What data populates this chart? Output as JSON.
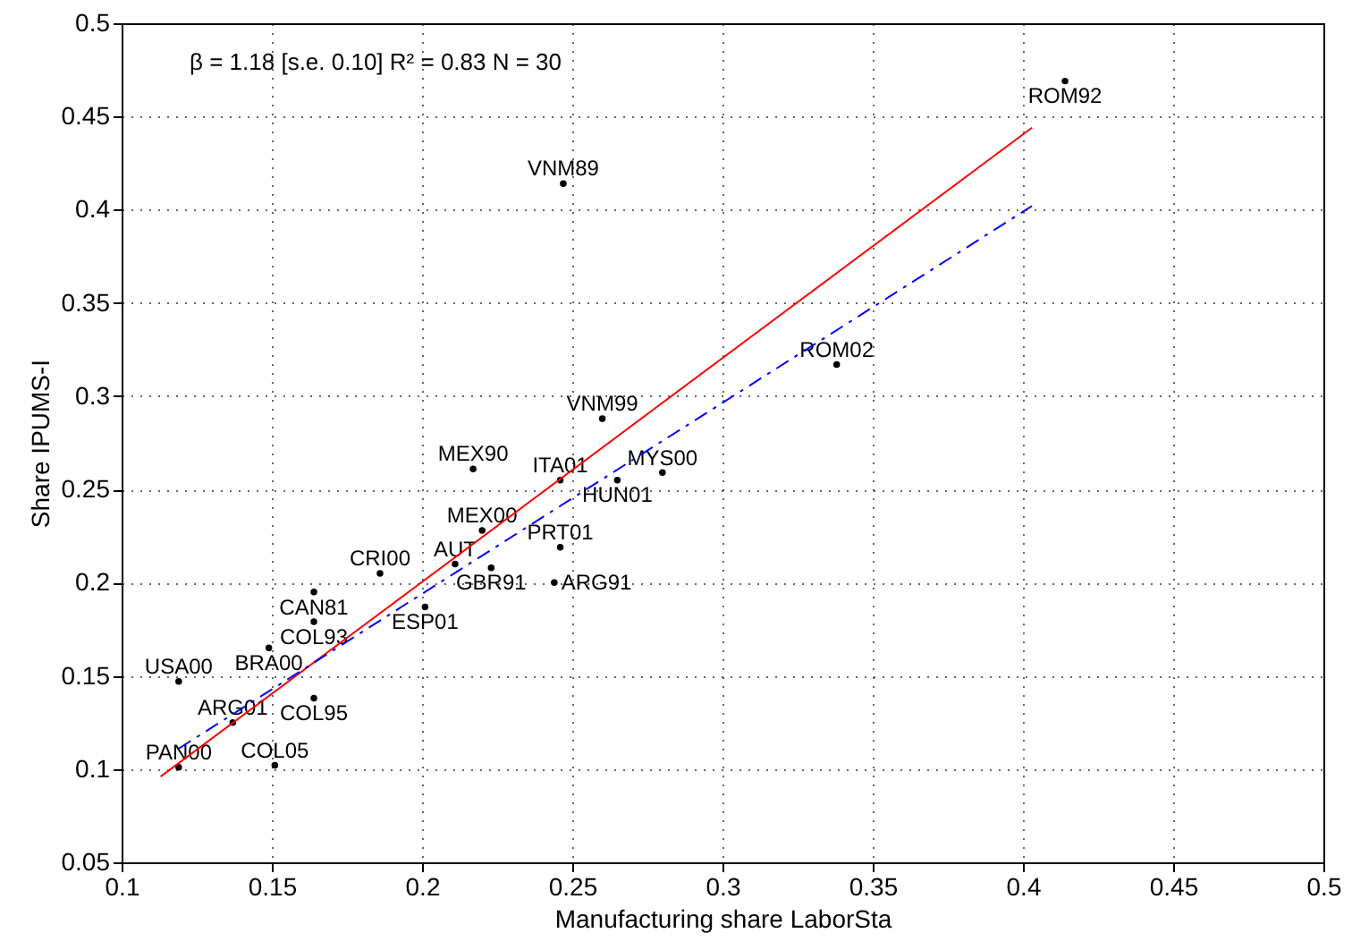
{
  "chart_data": {
    "type": "scatter",
    "xlabel": "Manufacturing share LaborSta",
    "ylabel": "Share IPUMS-I",
    "xlim": [
      0.1,
      0.5
    ],
    "ylim": [
      0.05,
      0.5
    ],
    "xticks": [
      0.1,
      0.15,
      0.2,
      0.25,
      0.3,
      0.35,
      0.4,
      0.45,
      0.5
    ],
    "yticks": [
      0.05,
      0.1,
      0.15,
      0.2,
      0.25,
      0.3,
      0.35,
      0.4,
      0.45,
      0.5
    ],
    "grid": true,
    "marker": "none",
    "annotations": [
      "β = 1.18  [s.e. 0.10]    R² = 0.83   N = 30"
    ],
    "series": [
      {
        "color": "#000000",
        "x": [
          0.414,
          0.247,
          0.338,
          0.26,
          0.217,
          0.246,
          0.265,
          0.28,
          0.22,
          0.246,
          0.211,
          0.223,
          0.244,
          0.186,
          0.164,
          0.201,
          0.164,
          0.149,
          0.119,
          0.164,
          0.137,
          0.119,
          0.151
        ],
        "values": [
          0.469,
          0.414,
          0.317,
          0.288,
          0.261,
          0.255,
          0.255,
          0.259,
          0.228,
          0.219,
          0.21,
          0.208,
          0.2,
          0.205,
          0.195,
          0.187,
          0.179,
          0.165,
          0.147,
          0.138,
          0.125,
          0.101,
          0.102
        ],
        "value_labels": [
          "ROM92",
          "VNM89",
          "ROM02",
          "VNM99",
          "MEX90",
          "ITA01",
          "HUN01",
          "MYS00",
          "MEX00",
          "PRT01",
          "AUT",
          "GBR91",
          "ARG91",
          "CRI00",
          "CAN81",
          "ESP01",
          "COL93",
          "BRA00",
          "USA00",
          "COL95",
          "ARG01",
          "PAN00",
          "COL05"
        ]
      },
      {
        "type": "line",
        "color": "#ff0000",
        "line_style": "solid",
        "x": [
          0.113,
          0.403
        ],
        "values": [
          0.096,
          0.444
        ]
      },
      {
        "type": "line",
        "color": "#0000ff",
        "line_style": "dashdot",
        "x": [
          0.119,
          0.403
        ],
        "values": [
          0.111,
          0.402
        ]
      }
    ]
  }
}
